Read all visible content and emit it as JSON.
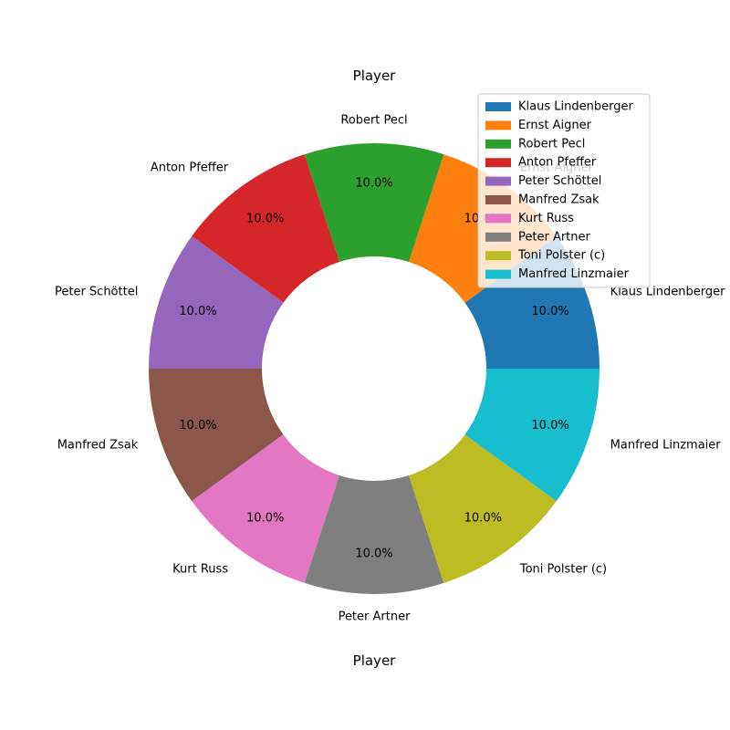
{
  "chart_data": {
    "type": "pie",
    "variant": "donut",
    "title": "Player",
    "xlabel": "Player",
    "categories": [
      "Klaus Lindenberger",
      "Ernst Aigner",
      "Robert Pecl",
      "Anton Pfeffer",
      "Peter Schöttel",
      "Manfred Zsak",
      "Kurt Russ",
      "Peter Artner",
      "Toni Polster (c)",
      "Manfred Linzmaier"
    ],
    "values": [
      1,
      1,
      1,
      1,
      1,
      1,
      1,
      1,
      1,
      1
    ],
    "percent_labels": [
      "10.0%",
      "10.0%",
      "10.0%",
      "10.0%",
      "10.0%",
      "10.0%",
      "10.0%",
      "10.0%",
      "10.0%",
      "10.0%"
    ],
    "colors": [
      "#1f77b4",
      "#ff7f0e",
      "#2ca02c",
      "#d62728",
      "#9467bd",
      "#8c564b",
      "#e377c2",
      "#7f7f7f",
      "#bcbd22",
      "#17becf"
    ],
    "legend": {
      "placement": "top-right",
      "entries": [
        "Klaus Lindenberger",
        "Ernst Aigner",
        "Robert Pecl",
        "Anton Pfeffer",
        "Peter Schöttel",
        "Manfred Zsak",
        "Kurt Russ",
        "Peter Artner",
        "Toni Polster (c)",
        "Manfred Linzmaier"
      ]
    }
  }
}
